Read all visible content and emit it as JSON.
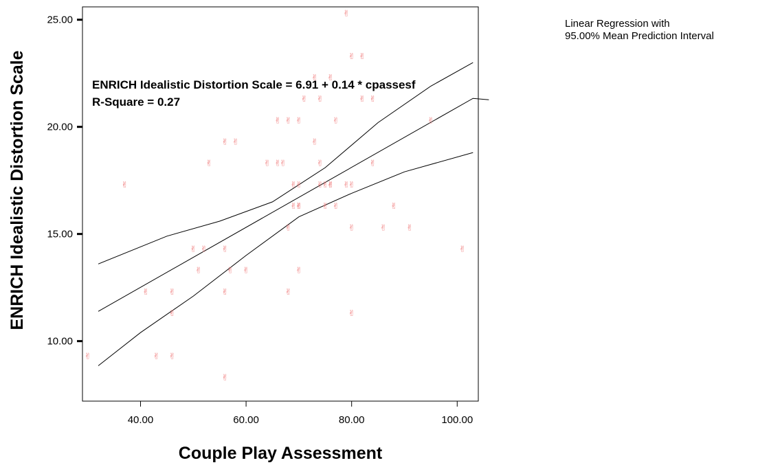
{
  "legend": {
    "line1": "Linear Regression with",
    "line2": "95.00% Mean Prediction Interval"
  },
  "annotation": {
    "equation": "ENRICH Idealistic Distortion Scale = 6.91 + 0.14 * cpassesf",
    "r_square": "R-Square = 0.27"
  },
  "chart_data": {
    "type": "scatter",
    "xlabel": "Couple Play Assessment",
    "ylabel": "ENRICH Idealistic Distortion Scale",
    "xlim": [
      29,
      104
    ],
    "ylim": [
      7.2,
      25.6
    ],
    "xticks": [
      40,
      60,
      80,
      100
    ],
    "xtick_labels": [
      "40.00",
      "60.00",
      "80.00",
      "100.00"
    ],
    "yticks": [
      10,
      15,
      20,
      25
    ],
    "ytick_labels": [
      "10.00",
      "15.00",
      "20.00",
      "25.00"
    ],
    "marker_color": "#f08080",
    "marker_glyph": "✌",
    "regression": {
      "intercept": 6.91,
      "slope": 0.14,
      "x_range": [
        32,
        103
      ]
    },
    "interval_upper": [
      [
        32,
        13.6
      ],
      [
        45,
        14.9
      ],
      [
        55,
        15.6
      ],
      [
        65,
        16.5
      ],
      [
        75,
        18.1
      ],
      [
        85,
        20.2
      ],
      [
        95,
        21.9
      ],
      [
        103,
        23.0
      ]
    ],
    "interval_lower": [
      [
        32,
        8.85
      ],
      [
        40,
        10.4
      ],
      [
        50,
        12.1
      ],
      [
        60,
        14.0
      ],
      [
        70,
        15.8
      ],
      [
        80,
        16.9
      ],
      [
        90,
        17.9
      ],
      [
        103,
        18.8
      ]
    ],
    "points": [
      [
        30,
        9.3
      ],
      [
        37,
        17.3
      ],
      [
        41,
        12.3
      ],
      [
        43,
        9.3
      ],
      [
        46,
        12.3
      ],
      [
        46,
        11.3
      ],
      [
        46,
        9.3
      ],
      [
        50,
        14.3
      ],
      [
        51,
        13.3
      ],
      [
        52,
        14.3
      ],
      [
        53,
        18.3
      ],
      [
        56,
        14.3
      ],
      [
        56,
        19.3
      ],
      [
        56,
        12.3
      ],
      [
        56,
        8.3
      ],
      [
        57,
        13.3
      ],
      [
        58,
        19.3
      ],
      [
        60,
        13.3
      ],
      [
        64,
        18.3
      ],
      [
        66,
        20.3
      ],
      [
        66,
        18.3
      ],
      [
        67,
        18.3
      ],
      [
        68,
        20.3
      ],
      [
        68,
        15.3
      ],
      [
        68,
        12.3
      ],
      [
        69,
        17.3
      ],
      [
        69,
        16.3
      ],
      [
        70,
        20.3
      ],
      [
        70,
        17.3
      ],
      [
        70,
        16.3
      ],
      [
        70,
        16.3
      ],
      [
        70,
        13.3
      ],
      [
        71,
        21.3
      ],
      [
        73,
        22.3
      ],
      [
        73,
        19.3
      ],
      [
        74,
        21.3
      ],
      [
        74,
        18.3
      ],
      [
        74,
        17.3
      ],
      [
        75,
        17.3
      ],
      [
        75,
        16.3
      ],
      [
        76,
        22.3
      ],
      [
        76,
        17.3
      ],
      [
        76,
        17.3
      ],
      [
        77,
        20.3
      ],
      [
        77,
        16.3
      ],
      [
        79,
        25.3
      ],
      [
        79,
        17.3
      ],
      [
        80,
        23.3
      ],
      [
        80,
        17.3
      ],
      [
        80,
        15.3
      ],
      [
        80,
        11.3
      ],
      [
        82,
        23.3
      ],
      [
        82,
        21.3
      ],
      [
        84,
        21.3
      ],
      [
        84,
        18.3
      ],
      [
        86,
        15.3
      ],
      [
        88,
        16.3
      ],
      [
        91,
        15.3
      ],
      [
        95,
        20.3
      ],
      [
        101,
        14.3
      ]
    ]
  }
}
